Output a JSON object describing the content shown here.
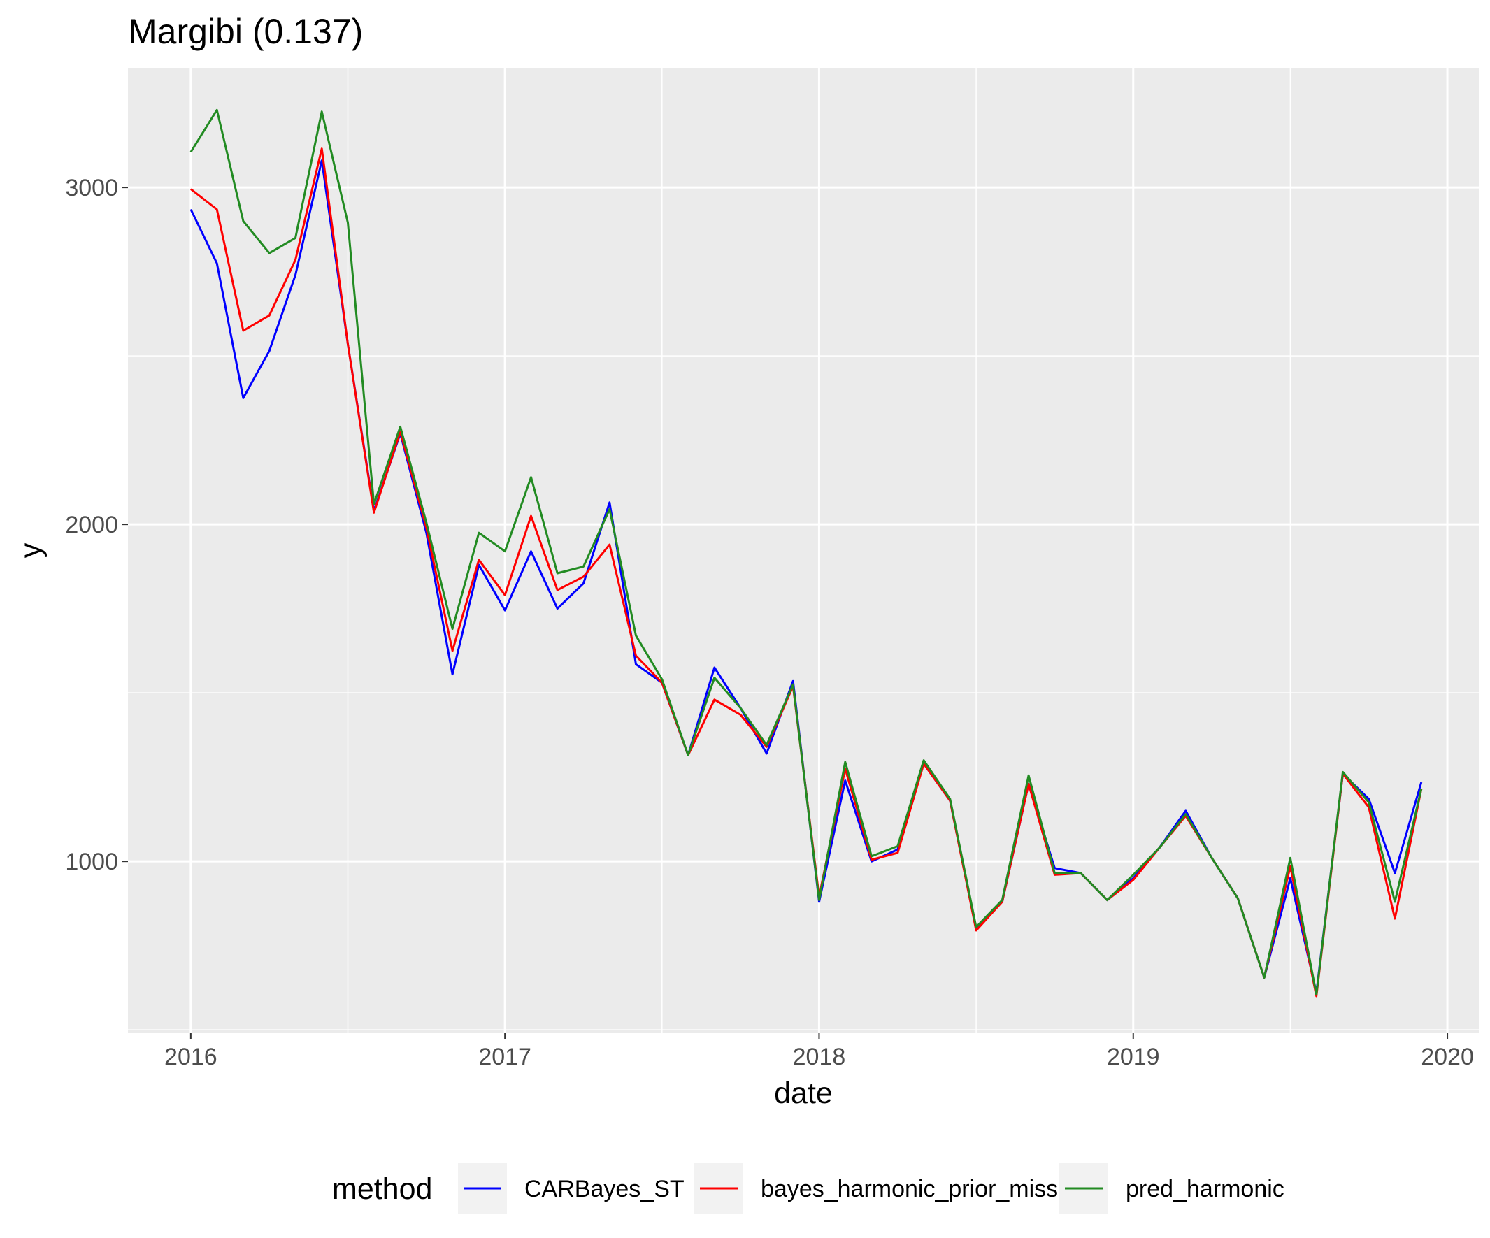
{
  "chart_data": {
    "type": "line",
    "title": "Margibi (0.137)",
    "xlabel": "date",
    "ylabel": "y",
    "x_ticks": [
      "2016",
      "2017",
      "2018",
      "2019",
      "2020"
    ],
    "y_ticks": [
      1000,
      2000,
      3000
    ],
    "xlim": [
      2015.8,
      2020.1
    ],
    "ylim": [
      490,
      3355
    ],
    "grid": true,
    "legend_position": "bottom",
    "legend_title": "method",
    "x": [
      2016.0,
      2016.083,
      2016.167,
      2016.25,
      2016.333,
      2016.417,
      2016.5,
      2016.583,
      2016.667,
      2016.75,
      2016.833,
      2016.917,
      2017.0,
      2017.083,
      2017.167,
      2017.25,
      2017.333,
      2017.417,
      2017.5,
      2017.583,
      2017.667,
      2017.75,
      2017.833,
      2017.917,
      2018.0,
      2018.083,
      2018.167,
      2018.25,
      2018.333,
      2018.417,
      2018.5,
      2018.583,
      2018.667,
      2018.75,
      2018.833,
      2018.917,
      2019.0,
      2019.083,
      2019.167,
      2019.25,
      2019.333,
      2019.417,
      2019.5,
      2019.583,
      2019.667,
      2019.75,
      2019.833,
      2019.917,
      2020.0
    ],
    "series": [
      {
        "name": "CARBayes_ST",
        "color": "#0000ff",
        "values": [
          2935,
          2775,
          2375,
          2515,
          2740,
          3080,
          2535,
          2040,
          2270,
          1975,
          1555,
          1880,
          1745,
          1920,
          1750,
          1825,
          2065,
          1585,
          1530,
          1315,
          1575,
          1455,
          1320,
          1535,
          880,
          1240,
          1000,
          1035,
          1290,
          1180,
          800,
          880,
          1230,
          980,
          965,
          885,
          950,
          1040,
          1150,
          1010,
          890,
          655,
          950,
          610,
          1260,
          1185,
          965,
          1235,
          null
        ]
      },
      {
        "name": "bayes_harmonic_prior_miss",
        "color": "#ff0000",
        "values": [
          2995,
          2935,
          2575,
          2620,
          2785,
          3115,
          2535,
          2035,
          2275,
          1990,
          1625,
          1895,
          1790,
          2025,
          1805,
          1845,
          1940,
          1610,
          1530,
          1315,
          1480,
          1435,
          1340,
          1520,
          895,
          1275,
          1005,
          1025,
          1290,
          1180,
          795,
          880,
          1230,
          960,
          965,
          885,
          945,
          1040,
          1135,
          1010,
          890,
          655,
          985,
          600,
          1260,
          1160,
          830,
          1215,
          null
        ]
      },
      {
        "name": "pred_harmonic",
        "color": "#228b22",
        "values": [
          3105,
          3230,
          2900,
          2805,
          2850,
          3225,
          2895,
          2060,
          2290,
          2005,
          1690,
          1975,
          1920,
          2140,
          1855,
          1875,
          2045,
          1670,
          1540,
          1315,
          1545,
          1455,
          1345,
          1525,
          885,
          1295,
          1015,
          1045,
          1300,
          1185,
          805,
          885,
          1255,
          965,
          965,
          885,
          960,
          1040,
          1140,
          1010,
          890,
          655,
          1010,
          605,
          1265,
          1175,
          880,
          1215,
          null
        ]
      }
    ]
  }
}
